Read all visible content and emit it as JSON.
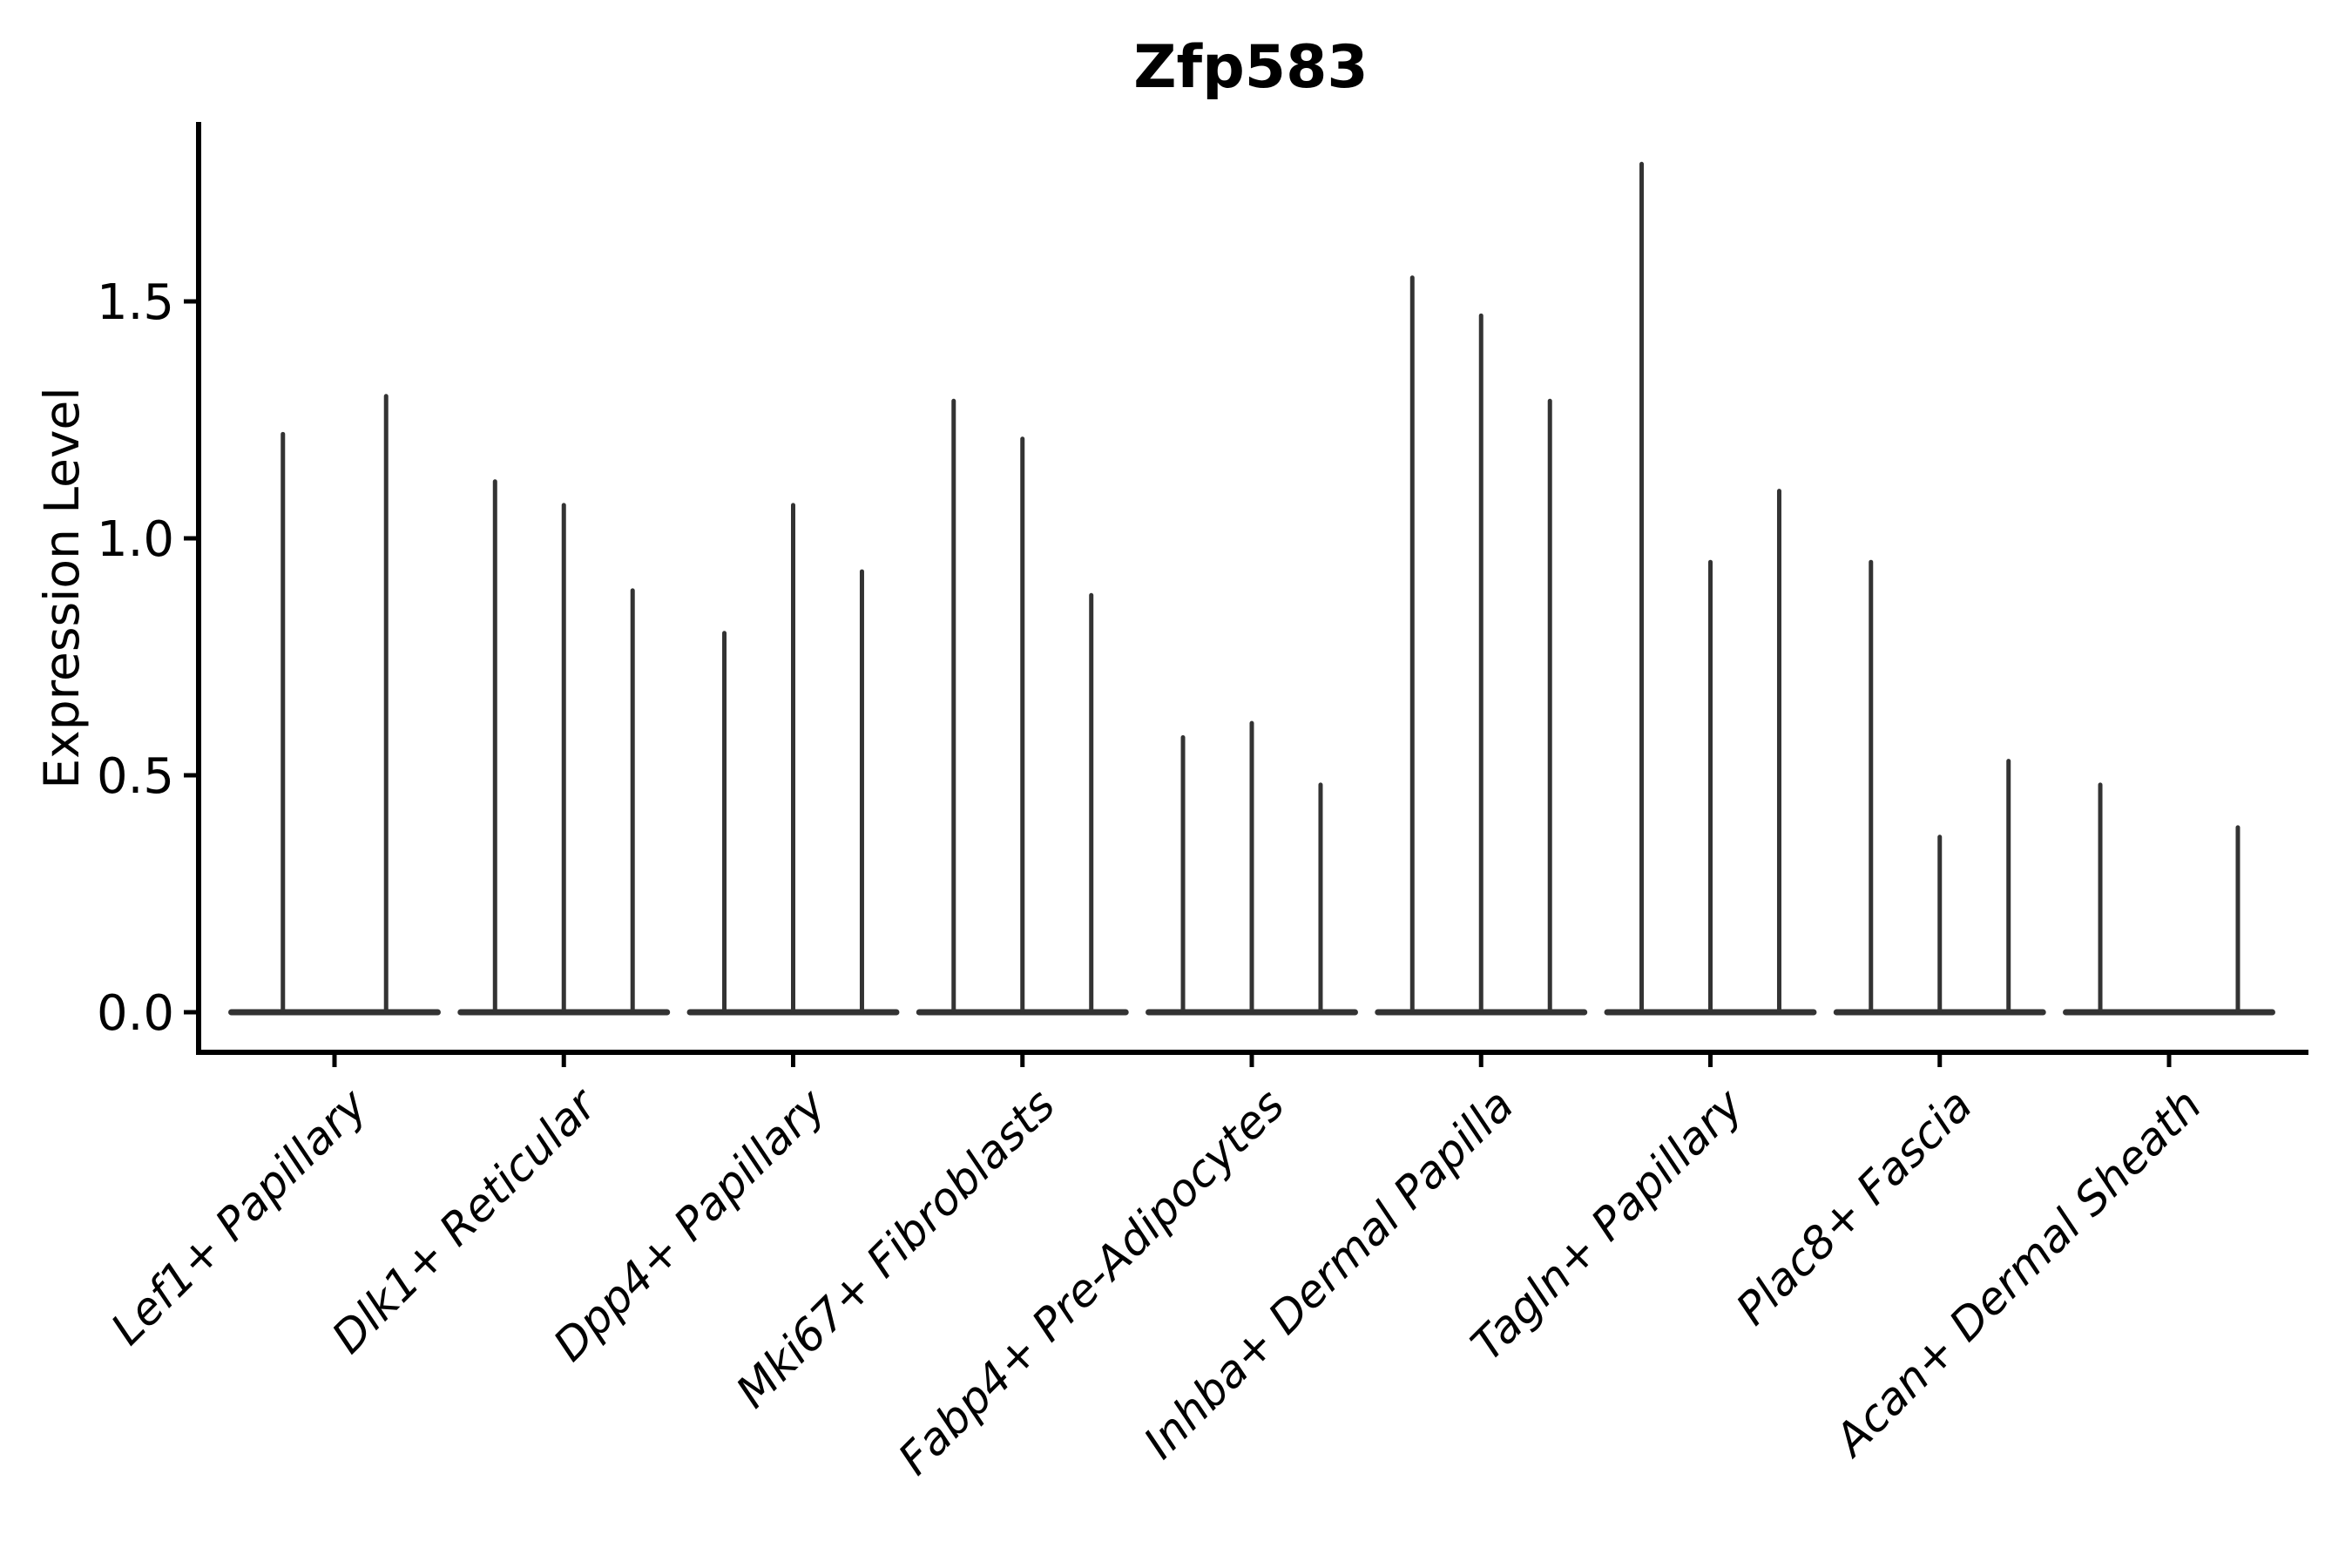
{
  "figure": {
    "title": "Zfp583",
    "ylabel": "Expression Level"
  },
  "chart_data": {
    "type": "violin",
    "title": "Zfp583",
    "xlabel": "",
    "ylabel": "Expression Level",
    "ylim": [
      -0.09,
      1.88
    ],
    "yticks": [
      0.0,
      0.5,
      1.0,
      1.5
    ],
    "ytick_labels": [
      "0.0",
      "0.5",
      "1.0",
      "1.5"
    ],
    "grid": false,
    "legend_position": "none",
    "background_color": "#ffffff",
    "axis_color": "#000000",
    "violin_color": "#333333",
    "baseline_halfwidth": 0.45,
    "categories": [
      {
        "label": "Lef1+ Papillary",
        "spikes": [
          {
            "offset": -0.225,
            "max": 1.22
          },
          {
            "offset": 0.225,
            "max": 1.3
          }
        ]
      },
      {
        "label": "Dlk1+ Reticular",
        "spikes": [
          {
            "offset": -0.3,
            "max": 1.12
          },
          {
            "offset": 0.0,
            "max": 1.07
          },
          {
            "offset": 0.3,
            "max": 0.89
          }
        ]
      },
      {
        "label": "Dpp4+ Papillary",
        "spikes": [
          {
            "offset": -0.3,
            "max": 0.8
          },
          {
            "offset": 0.0,
            "max": 1.07
          },
          {
            "offset": 0.3,
            "max": 0.93
          }
        ]
      },
      {
        "label": "Mki67+ Fibroblasts",
        "spikes": [
          {
            "offset": -0.3,
            "max": 1.29
          },
          {
            "offset": 0.0,
            "max": 1.21
          },
          {
            "offset": 0.3,
            "max": 0.88
          }
        ]
      },
      {
        "label": "Fabp4+ Pre-Adipocytes",
        "spikes": [
          {
            "offset": -0.3,
            "max": 0.58
          },
          {
            "offset": 0.0,
            "max": 0.61
          },
          {
            "offset": 0.3,
            "max": 0.48
          }
        ]
      },
      {
        "label": "Inhba+ Dermal Papilla",
        "spikes": [
          {
            "offset": -0.3,
            "max": 1.55
          },
          {
            "offset": 0.0,
            "max": 1.47
          },
          {
            "offset": 0.3,
            "max": 1.29
          }
        ]
      },
      {
        "label": "Tagln+ Papillary",
        "spikes": [
          {
            "offset": -0.3,
            "max": 1.79
          },
          {
            "offset": 0.0,
            "max": 0.95
          },
          {
            "offset": 0.3,
            "max": 1.1
          }
        ]
      },
      {
        "label": "Plac8+ Fascia",
        "spikes": [
          {
            "offset": -0.3,
            "max": 0.95
          },
          {
            "offset": 0.0,
            "max": 0.37
          },
          {
            "offset": 0.3,
            "max": 0.53
          }
        ]
      },
      {
        "label": "Acan+ Dermal Sheath",
        "spikes": [
          {
            "offset": -0.3,
            "max": 0.48
          },
          {
            "offset": 0.3,
            "max": 0.39
          }
        ]
      }
    ]
  }
}
